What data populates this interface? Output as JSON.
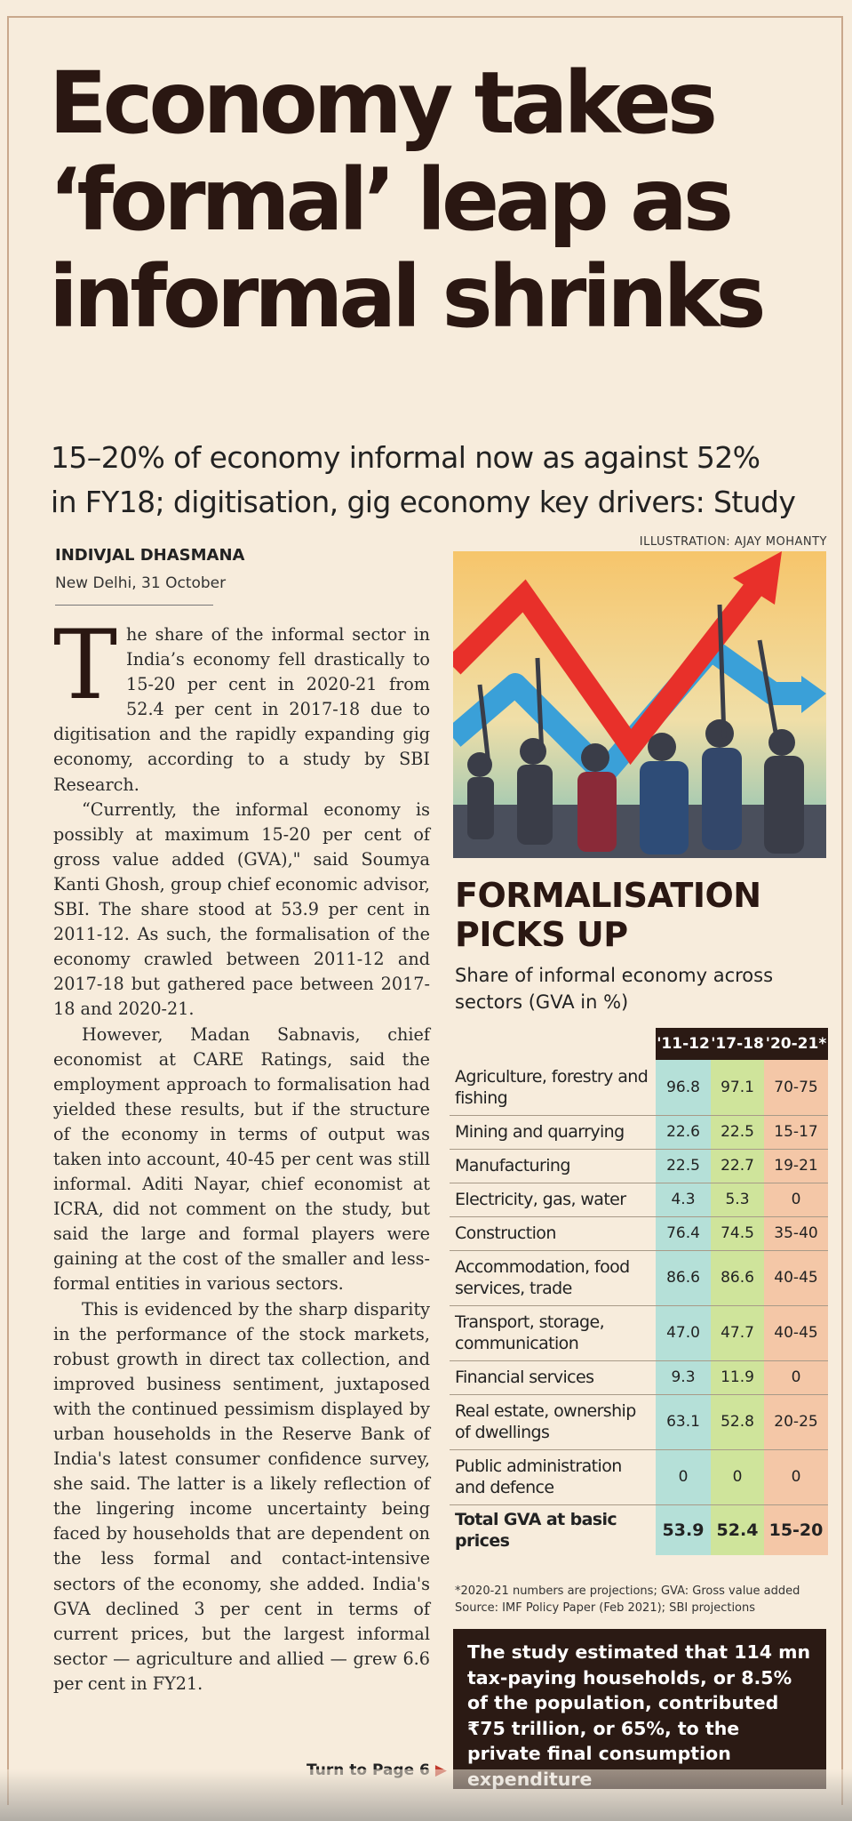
{
  "headline": {
    "line1": "Economy takes",
    "line2": "‘formal’ leap as",
    "line3": "informal shrinks"
  },
  "deck": {
    "line1": "15–20% of economy informal now as against 52%",
    "line2": "in FY18; digitisation, gig economy key drivers: Study"
  },
  "illustration_credit": "ILLUSTRATION: AJAY MOHANTY",
  "byline": "INDIVJAL DHASMANA",
  "dateline": "New Delhi, 31 October",
  "article": {
    "dropcap": "T",
    "p1": "he share of the informal sector in India’s economy fell drastically to 15-20 per cent in 2020-21 from 52.4 per cent in 2017-18 due to digitisation and the rapidly expanding gig economy, according to a study by SBI Research.",
    "p2": "“Currently, the informal economy is possibly at maximum 15-20 per cent of gross value added (GVA),\" said Soumya Kanti Ghosh, group chief economic advisor, SBI. The share stood at 53.9 per cent in 2011-12. As such, the formalisation of the economy crawled between 2011-12 and 2017-18 but gathered pace between 2017-18 and 2020-21.",
    "p3": "However, Madan Sabnavis, chief economist at CARE Ratings, said the employment approach to formalisation had yielded these results, but if the structure of the economy in terms of output was taken into account, 40-45 per cent was still informal. Aditi Nayar, chief economist at ICRA, did not comment on the study, but said the large and formal players were gaining at the cost of the smaller and less-formal entities in various sectors.",
    "p4": "This is evidenced by the sharp disparity in the performance of the stock markets, robust growth in direct tax collection, and improved business sentiment, juxtaposed with the continued pessimism displayed by urban households in the Reserve Bank of India's latest consumer confidence survey, she said. The latter is a likely reflection of the lingering income uncertainty being faced by households that are dependent on the less formal and contact-intensive sectors of the economy, she added. India's GVA declined 3 per cent in terms of current prices, but the largest informal sector — agriculture and allied — grew 6.6 per cent in FY21."
  },
  "turn_page": "Turn to Page 6",
  "graphic": {
    "title_line1": "FORMALISATION",
    "title_line2": "PICKS UP",
    "subtitle_line1": "Share of informal economy across",
    "subtitle_line2": "sectors (GVA in %)",
    "note_line1": "*2020-21 numbers are projections; GVA: Gross value added",
    "note_line2": "Source: IMF Policy Paper (Feb 2021); SBI projections"
  },
  "chart_data": {
    "type": "table",
    "title": "FORMALISATION PICKS UP",
    "subtitle": "Share of informal economy across sectors (GVA in %)",
    "columns": [
      "'11-12",
      "'17-18",
      "'20-21*"
    ],
    "rows": [
      {
        "sector": "Agriculture, forestry and fishing",
        "values": [
          "96.8",
          "97.1",
          "70-75"
        ]
      },
      {
        "sector": "Mining and quarrying",
        "values": [
          "22.6",
          "22.5",
          "15-17"
        ]
      },
      {
        "sector": "Manufacturing",
        "values": [
          "22.5",
          "22.7",
          "19-21"
        ]
      },
      {
        "sector": "Electricity, gas, water",
        "values": [
          "4.3",
          "5.3",
          "0"
        ]
      },
      {
        "sector": "Construction",
        "values": [
          "76.4",
          "74.5",
          "35-40"
        ]
      },
      {
        "sector": "Accommodation, food services, trade",
        "values": [
          "86.6",
          "86.6",
          "40-45"
        ]
      },
      {
        "sector": "Transport, storage, communication",
        "values": [
          "47.0",
          "47.7",
          "40-45"
        ]
      },
      {
        "sector": "Financial services",
        "values": [
          "9.3",
          "11.9",
          "0"
        ]
      },
      {
        "sector": "Real estate, ownership of dwellings",
        "values": [
          "63.1",
          "52.8",
          "20-25"
        ]
      },
      {
        "sector": "Public administration and defence",
        "values": [
          "0",
          "0",
          "0"
        ]
      },
      {
        "sector": "Total GVA at basic prices",
        "values": [
          "53.9",
          "52.4",
          "15-20"
        ]
      }
    ],
    "colors": {
      "col1": "#b5e0d8",
      "col2": "#cfe49b",
      "col3": "#f4c7a7",
      "header": "#2b1a14"
    }
  },
  "callout": "The study estimated that 114 mn tax-paying households, or 8.5% of the population, contributed ₹75 trillion, or 65%, to the private final consumption expenditure"
}
